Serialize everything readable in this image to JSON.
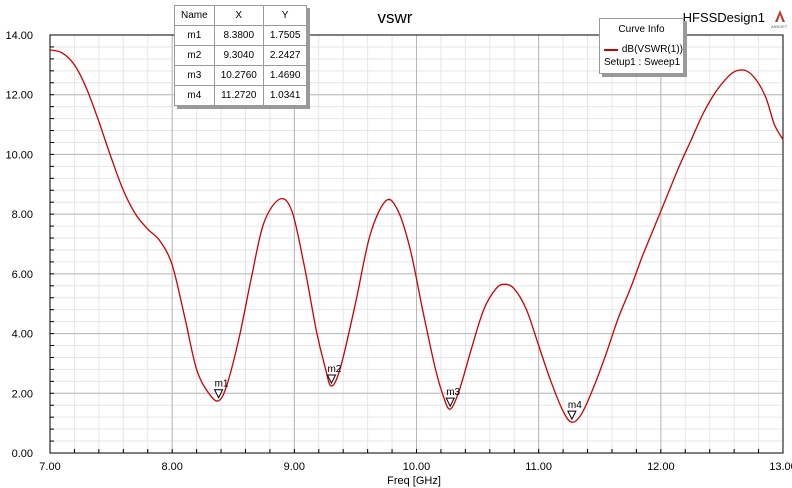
{
  "chart_data": {
    "type": "line",
    "title": "vswr",
    "design_name": "HFSSDesign1",
    "xlabel": "Freq [GHz]",
    "ylabel": "",
    "xlim": [
      7.0,
      13.0
    ],
    "ylim": [
      0.0,
      14.0
    ],
    "x_ticks": [
      "7.00",
      "8.00",
      "9.00",
      "10.00",
      "11.00",
      "12.00",
      "13.00"
    ],
    "y_ticks": [
      "0.00",
      "2.00",
      "4.00",
      "6.00",
      "8.00",
      "10.00",
      "12.00",
      "14.00"
    ],
    "grid": true,
    "line_color": "#d00000",
    "series": [
      {
        "name": "dB(VSWR(1))",
        "setup": "Setup1 : Sweep1",
        "x": [
          7.0,
          7.1,
          7.2,
          7.3,
          7.4,
          7.5,
          7.6,
          7.7,
          7.8,
          7.9,
          8.0,
          8.1,
          8.2,
          8.3,
          8.38,
          8.45,
          8.55,
          8.65,
          8.75,
          8.88,
          8.98,
          9.08,
          9.18,
          9.25,
          9.304,
          9.38,
          9.5,
          9.62,
          9.75,
          9.85,
          9.95,
          10.05,
          10.15,
          10.22,
          10.276,
          10.35,
          10.45,
          10.55,
          10.65,
          10.72,
          10.8,
          10.9,
          11.0,
          11.1,
          11.2,
          11.272,
          11.35,
          11.45,
          11.55,
          11.65,
          11.75,
          11.85,
          11.95,
          12.05,
          12.15,
          12.25,
          12.35,
          12.45,
          12.55,
          12.62,
          12.7,
          12.78,
          12.86,
          12.93,
          13.0
        ],
        "y": [
          13.5,
          13.4,
          13.0,
          12.2,
          11.1,
          9.9,
          8.8,
          8.0,
          7.5,
          7.1,
          6.3,
          4.6,
          2.8,
          2.0,
          1.75,
          2.3,
          3.9,
          5.9,
          7.7,
          8.5,
          8.1,
          6.3,
          4.1,
          2.9,
          2.24,
          2.9,
          5.0,
          7.3,
          8.45,
          8.1,
          6.8,
          4.8,
          2.9,
          1.9,
          1.47,
          2.1,
          3.5,
          4.8,
          5.5,
          5.65,
          5.5,
          4.8,
          3.6,
          2.4,
          1.4,
          1.03,
          1.3,
          2.2,
          3.3,
          4.5,
          5.5,
          6.6,
          7.6,
          8.6,
          9.6,
          10.5,
          11.4,
          12.1,
          12.6,
          12.8,
          12.8,
          12.5,
          11.9,
          11.0,
          10.5
        ]
      }
    ],
    "markers": [
      {
        "name": "m1",
        "x": 8.38,
        "y": 1.7505,
        "x_text": "8.3800",
        "y_text": "1.7505"
      },
      {
        "name": "m2",
        "x": 9.304,
        "y": 2.2427,
        "x_text": "9.3040",
        "y_text": "2.2427"
      },
      {
        "name": "m3",
        "x": 10.276,
        "y": 1.469,
        "x_text": "10.2760",
        "y_text": "1.4690"
      },
      {
        "name": "m4",
        "x": 11.272,
        "y": 1.0341,
        "x_text": "11.2720",
        "y_text": "1.0341"
      }
    ]
  },
  "marker_table": {
    "headers": [
      "Name",
      "X",
      "Y"
    ]
  },
  "curve_info": {
    "title": "Curve Info",
    "entry": "dB(VSWR(1))",
    "sub": "Setup1 : Sweep1"
  },
  "logo_text": "ANSOFT"
}
